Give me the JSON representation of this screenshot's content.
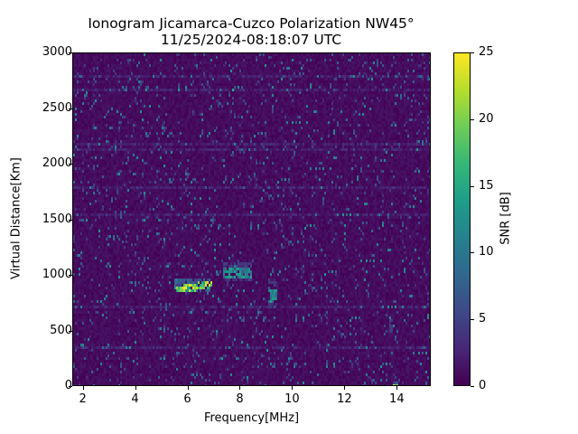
{
  "chart_data": {
    "type": "heatmap",
    "title": "Ionogram Jicamarca-Cuzco Polarization NW45°",
    "subtitle": "11/25/2024-08:18:07 UTC",
    "xlabel": "Frequency[MHz]",
    "ylabel": "Virtual Distance[Km]",
    "xlim": [
      1.6,
      15.3
    ],
    "ylim": [
      0,
      3000
    ],
    "xticks": [
      2,
      4,
      6,
      8,
      10,
      12,
      14
    ],
    "yticks": [
      0,
      500,
      1000,
      1500,
      2000,
      2500,
      3000
    ],
    "colorbar": {
      "label": "SNR [dB]",
      "colormap": "viridis",
      "range": [
        0,
        25
      ],
      "ticks": [
        0,
        5,
        10,
        15,
        20,
        25
      ]
    },
    "grid": false,
    "background_snr_db": 1,
    "features": [
      {
        "name": "main-echo-trace",
        "freq_mhz": [
          5.5,
          6.9
        ],
        "distance_km": [
          850,
          950
        ],
        "peak_snr_db": 25
      },
      {
        "name": "secondary-echo-trace",
        "freq_mhz": [
          7.4,
          8.4
        ],
        "distance_km": [
          950,
          1100
        ],
        "peak_snr_db": 15
      },
      {
        "name": "vertical-interference-9.2MHz",
        "freq_mhz": [
          9.15,
          9.4
        ],
        "distance_km": [
          720,
          950
        ],
        "peak_snr_db": 14
      },
      {
        "name": "vertical-interference-13.8MHz",
        "freq_mhz": [
          13.75,
          13.85
        ],
        "distance_km": [
          450,
          650
        ],
        "peak_snr_db": 6
      },
      {
        "name": "speck-14MHz",
        "freq_mhz": [
          13.9,
          14.0
        ],
        "distance_km": [
          0,
          20
        ],
        "peak_snr_db": 25
      }
    ]
  }
}
